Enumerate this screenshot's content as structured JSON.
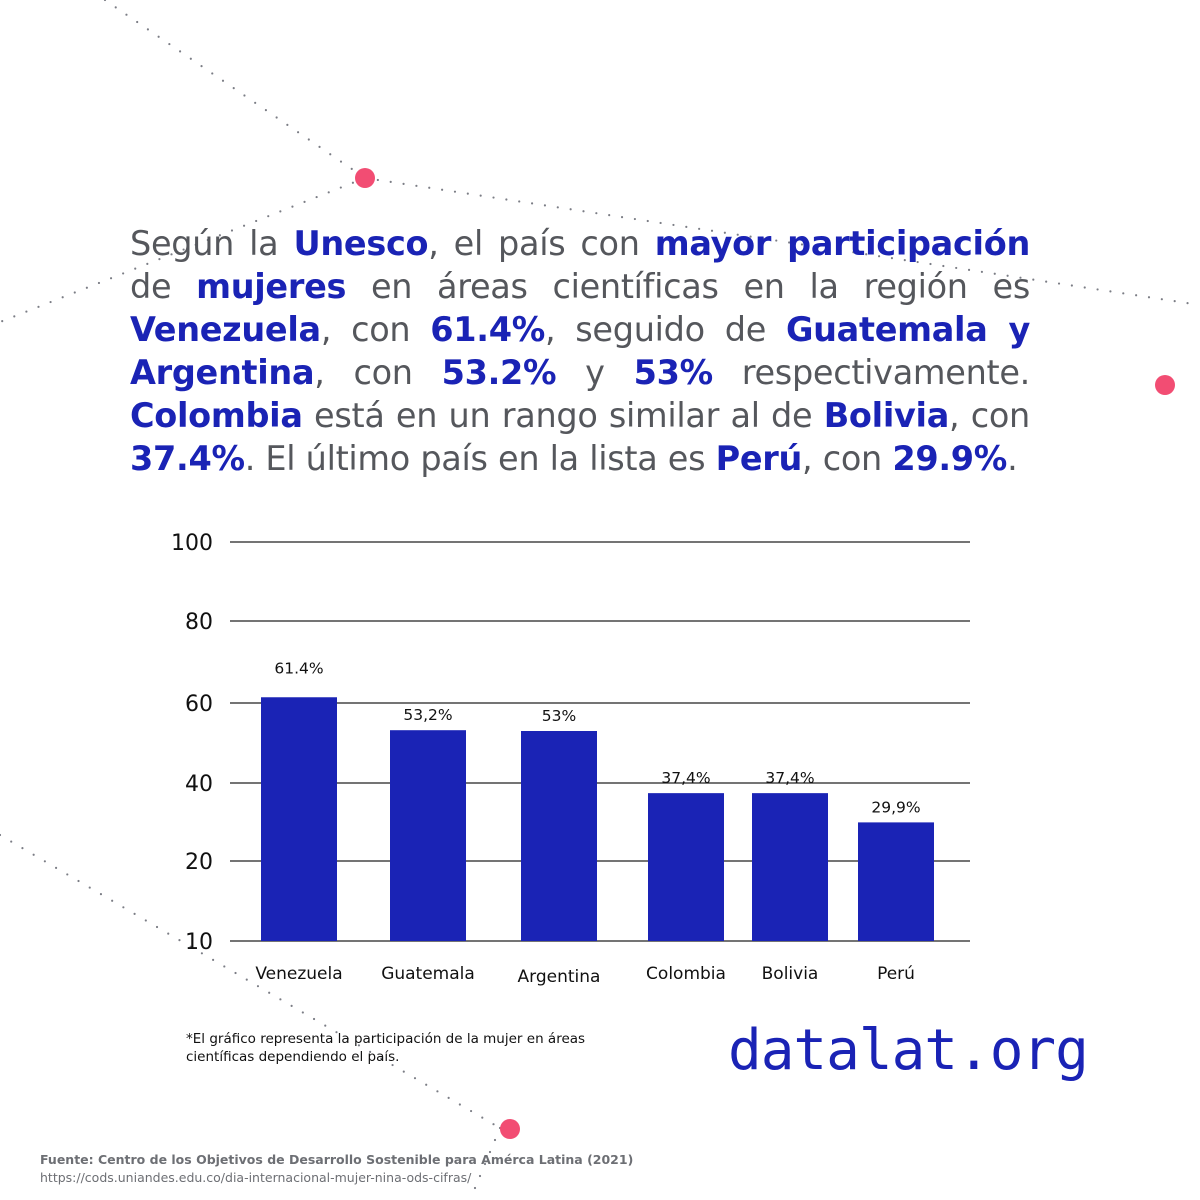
{
  "colors": {
    "bar": "#1a23b5",
    "accent_text": "#1a23b5",
    "body_text": "#55575c",
    "dot": "#f24d73",
    "dotted_line": "#7b7d85"
  },
  "intro": {
    "parts": [
      {
        "t": "Según la ",
        "b": false
      },
      {
        "t": "Unesco",
        "b": true
      },
      {
        "t": ", el país con ",
        "b": false
      },
      {
        "t": "mayor participación",
        "b": true
      },
      {
        "t": " de ",
        "b": false
      },
      {
        "t": "mujeres",
        "b": true
      },
      {
        "t": " en áreas científicas en la región es ",
        "b": false
      },
      {
        "t": "Venezuela",
        "b": true
      },
      {
        "t": ", con ",
        "b": false
      },
      {
        "t": "61.4%",
        "b": true
      },
      {
        "t": ", seguido de ",
        "b": false
      },
      {
        "t": "Guatemala y Argentina",
        "b": true
      },
      {
        "t": ", con ",
        "b": false
      },
      {
        "t": "53.2%",
        "b": true
      },
      {
        "t": " y ",
        "b": false
      },
      {
        "t": "53%",
        "b": true
      },
      {
        "t": " respectivamente. ",
        "b": false
      },
      {
        "t": "Colombia",
        "b": true
      },
      {
        "t": " está en un rango similar al de ",
        "b": false
      },
      {
        "t": "Bolivia",
        "b": true
      },
      {
        "t": ", con ",
        "b": false
      },
      {
        "t": "37.4%",
        "b": true
      },
      {
        "t": ". El último país en la lista es ",
        "b": false
      },
      {
        "t": "Perú",
        "b": true
      },
      {
        "t": ", con ",
        "b": false
      },
      {
        "t": "29.9%",
        "b": true
      },
      {
        "t": ".",
        "b": false
      }
    ]
  },
  "chart_data": {
    "type": "bar",
    "categories": [
      "Venezuela",
      "Guatemala",
      "Argentina",
      "Colombia",
      "Bolivia",
      "Perú"
    ],
    "values": [
      61.4,
      53.2,
      53,
      37.4,
      37.4,
      29.9
    ],
    "data_labels": [
      "61.4%",
      "53,2%",
      "53%",
      "37,4%",
      "37,4%",
      "29,9%"
    ],
    "y_ticks": [
      10,
      20,
      40,
      60,
      80,
      100
    ],
    "ylim": [
      10,
      100
    ],
    "grid": true,
    "legend": "none"
  },
  "footnote": "*El gráfico representa la participación de la mujer en áreas científicas dependiendo el país.",
  "brand": "datalat.org",
  "source": {
    "title": "Fuente: Centro de los Objetivos de Desarrollo Sostenible para Amérca Latina (2021)",
    "url": "https://cods.uniandes.edu.co/dia-internacional-mujer-nina-ods-cifras/"
  }
}
